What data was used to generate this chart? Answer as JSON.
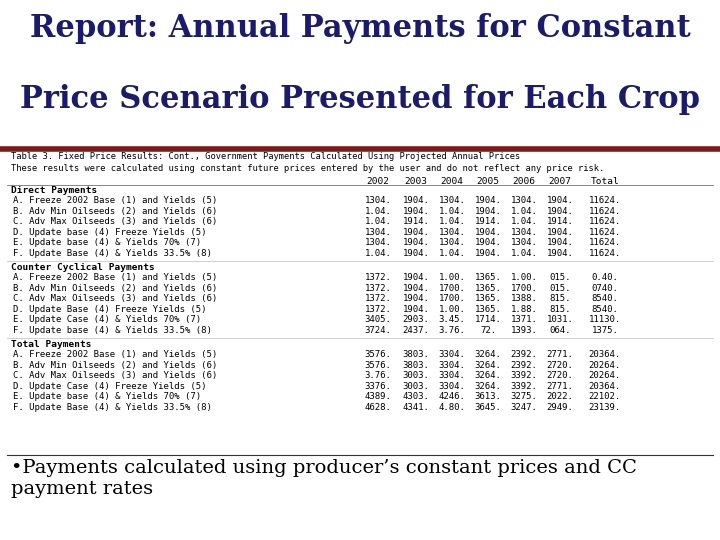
{
  "title_line1": "Report: Annual Payments for Constant",
  "title_line2": "Price Scenario Presented for Each Crop",
  "title_color": "#1a1a6e",
  "title_fontsize": 22,
  "divider_color": "#7a1a1a",
  "background_color": "#ffffff",
  "table_title_line1": "Table 3. Fixed Price Results: Cont., Government Payments Calculated Using Projected Annual Prices",
  "table_title_line2": "These results were calculated using constant future prices entered by the user and do not reflect any price risk.",
  "col_headers": [
    "2002",
    "2003",
    "2004",
    "2005",
    "2006",
    "2007",
    "Total"
  ],
  "section1_header": "Direct Payments",
  "section1_rows": [
    [
      "A. Freeze 2002 Base (1) and Yields (5)",
      "1304.",
      "1904.",
      "1304.",
      "1904.",
      "1304.",
      "1904.",
      "11624."
    ],
    [
      "B. Adv Min Oilseeds (2) and Yields (6)",
      "1.04.",
      "1904.",
      "1.04.",
      "1904.",
      "1.04.",
      "1904.",
      "11624."
    ],
    [
      "C. Adv Max Oilseeds (3) and Yields (6)",
      "1.04.",
      "1914.",
      "1.04.",
      "1914.",
      "1.04.",
      "1914.",
      "11624."
    ],
    [
      "D. Update base (4) Freeze Yields (5)",
      "1304.",
      "1904.",
      "1304.",
      "1904.",
      "1304.",
      "1904.",
      "11624."
    ],
    [
      "E. Update base (4) & Yields 70% (7)",
      "1304.",
      "1904.",
      "1304.",
      "1904.",
      "1304.",
      "1904.",
      "11624."
    ],
    [
      "F. Update Base (4) & Yields 33.5% (8)",
      "1.04.",
      "1904.",
      "1.04.",
      "1904.",
      "1.04.",
      "1904.",
      "11624."
    ]
  ],
  "section2_header": "Counter Cyclical Payments",
  "section2_rows": [
    [
      "A. Freeze 2002 Base (1) and Yields (5)",
      "1372.",
      "1904.",
      "1.00.",
      "1365.",
      "1.00.",
      "015.",
      "0.40."
    ],
    [
      "B. Adv Min Oilseeds (2) and Yields (6)",
      "1372.",
      "1904.",
      "1700.",
      "1365.",
      "1700.",
      "015.",
      "0740."
    ],
    [
      "C. Adv Max Oilseeds (3) and Yields (6)",
      "1372.",
      "1904.",
      "1700.",
      "1365.",
      "1388.",
      "815.",
      "8540."
    ],
    [
      "D. Update Base (4) Freeze Yields (5)",
      "1372.",
      "1904.",
      "1.00.",
      "1365.",
      "1.88.",
      "815.",
      "8540."
    ],
    [
      "E. Update Case (4) & Yields 70% (7)",
      "3405.",
      "2903.",
      "3.45.",
      "1714.",
      "1371.",
      "1031.",
      "11130."
    ],
    [
      "F. Update base (4) & Yields 33.5% (8)",
      "3724.",
      "2437.",
      "3.76.",
      "72.",
      "1393.",
      "064.",
      "1375."
    ]
  ],
  "section3_header": "Total Payments",
  "section3_rows": [
    [
      "A. Freeze 2002 Base (1) and Yields (5)",
      "3576.",
      "3803.",
      "3304.",
      "3264.",
      "2392.",
      "2771.",
      "20364."
    ],
    [
      "B. Adv Min Oilseeds (2) and Yields (6)",
      "3576.",
      "3803.",
      "3304.",
      "3264.",
      "2392.",
      "2720.",
      "20264."
    ],
    [
      "C. Adv Max Oilseeds (3) and Yields (6)",
      "3.76.",
      "3003.",
      "3304.",
      "3264.",
      "3392.",
      "2720.",
      "20264."
    ],
    [
      "D. Update Case (4) Freeze Yields (5)",
      "3376.",
      "3003.",
      "3304.",
      "3264.",
      "3392.",
      "2771.",
      "20364."
    ],
    [
      "E. Update base (4) & Yields 70% (7)",
      "4389.",
      "4303.",
      "4246.",
      "3613.",
      "3275.",
      "2022.",
      "22102."
    ],
    [
      "F. Update Base (4) & Yields 33.5% (8)",
      "4628.",
      "4341.",
      "4.80.",
      "3645.",
      "3247.",
      "2949.",
      "23139."
    ]
  ],
  "footer_text": "•Payments calculated using producer’s constant prices and CC\npayment rates",
  "footer_fontsize": 14,
  "table_text_color": "#000000",
  "table_fontsize": 6.8
}
